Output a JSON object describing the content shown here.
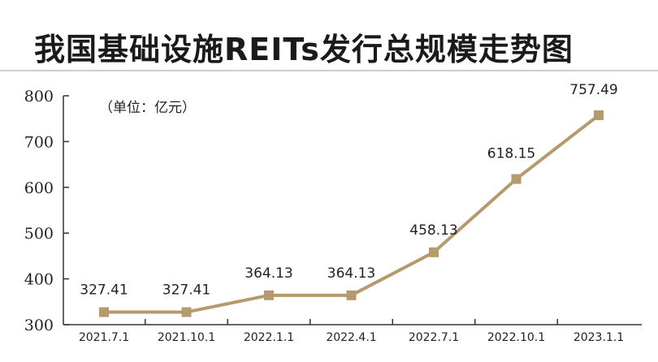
{
  "title": "我国基础设施REITs发行总规模走势图",
  "chart_data": {
    "type": "line",
    "title": "我国基础设施REITs发行总规模走势图",
    "unit_label": "（单位：亿元）",
    "categories": [
      "2021.7.1",
      "2021.10.1",
      "2022.1.1",
      "2022.4.1",
      "2022.7.1",
      "2022.10.1",
      "2023.1.1"
    ],
    "values": [
      327.41,
      327.41,
      364.13,
      364.13,
      458.13,
      618.15,
      757.49
    ],
    "value_labels": [
      "327.41",
      "327.41",
      "364.13",
      "364.13",
      "458.13",
      "618.15",
      "757.49"
    ],
    "ylim": [
      300,
      800
    ],
    "yticks": [
      300,
      400,
      500,
      600,
      700,
      800
    ],
    "grid": false,
    "line_color": "#b59a6e",
    "marker": "square"
  }
}
